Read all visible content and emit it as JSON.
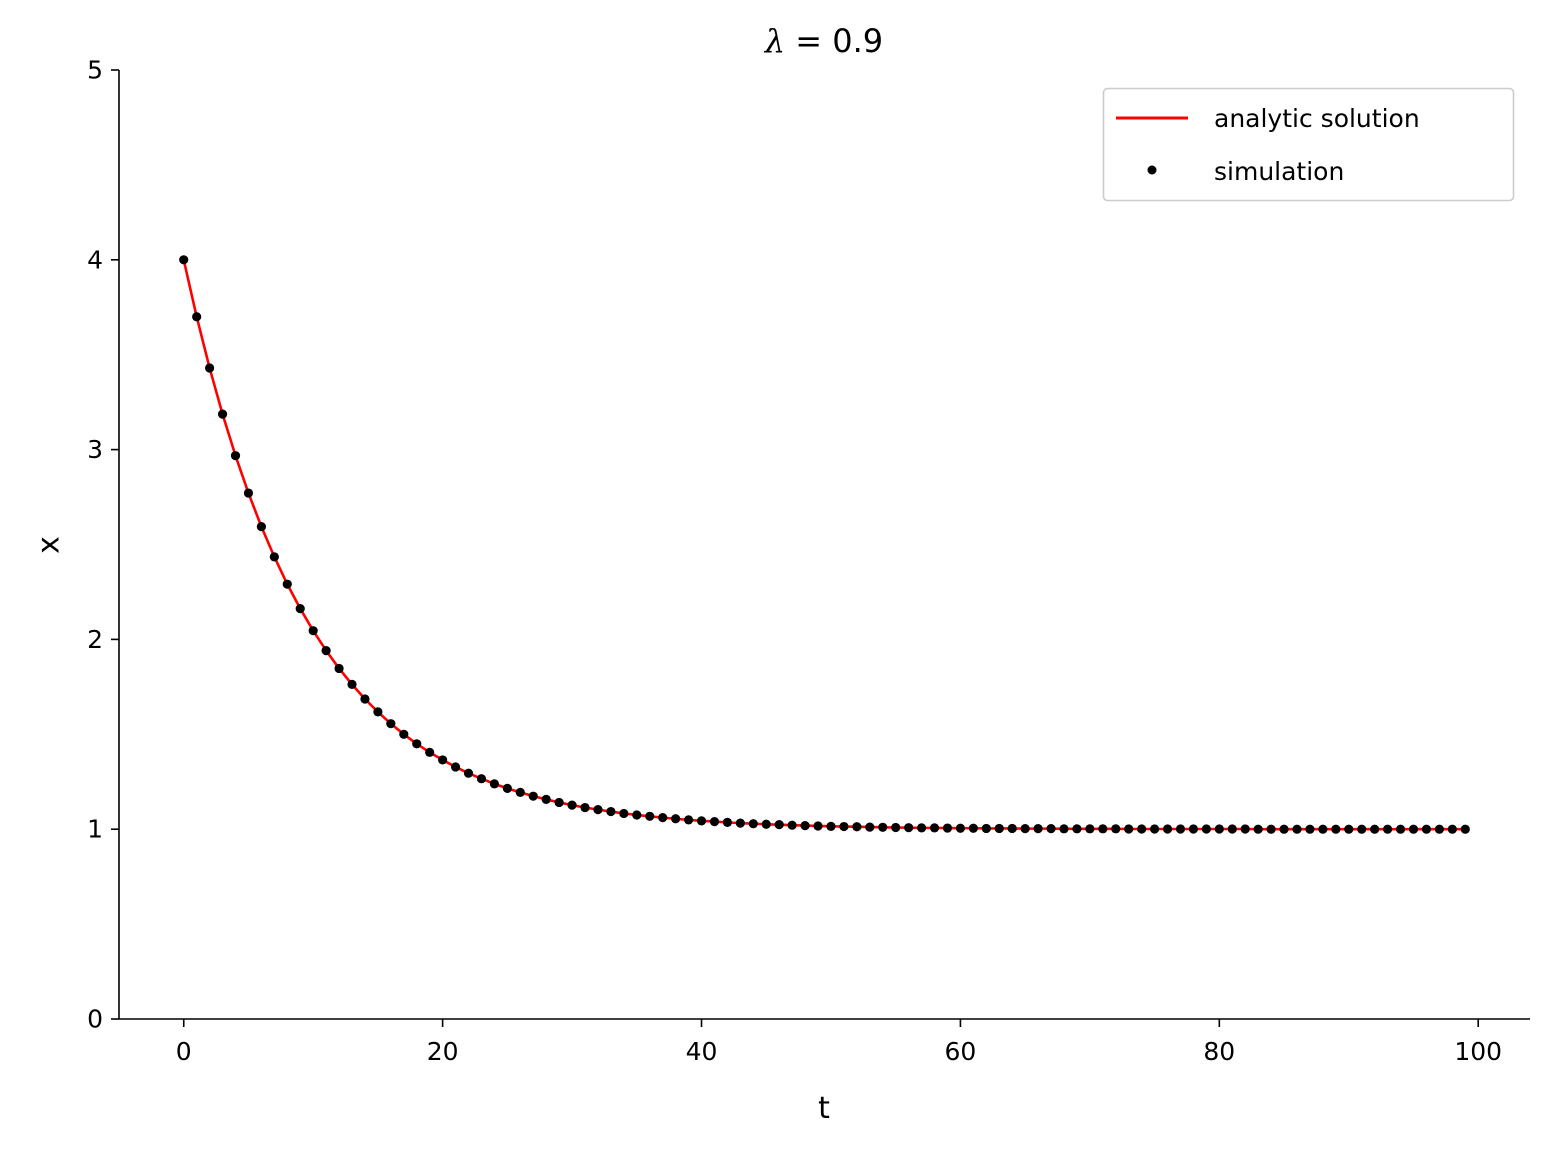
{
  "chart_data": {
    "type": "line",
    "title": "λ = 0.9",
    "title_parts": {
      "symbol": "λ",
      "rest": " = 0.9"
    },
    "xlabel": "t",
    "ylabel": "x",
    "xlim": [
      -5,
      104
    ],
    "ylim": [
      0,
      5
    ],
    "x_ticks": [
      0,
      20,
      40,
      60,
      80,
      100
    ],
    "y_ticks": [
      0,
      1,
      2,
      3,
      4,
      5
    ],
    "grid": false,
    "legend_position": "top-right",
    "series": [
      {
        "name": "analytic solution",
        "kind": "line",
        "color": "#ff0000",
        "x": [
          0,
          1,
          2,
          3,
          4,
          5,
          6,
          7,
          8,
          9,
          10,
          11,
          12,
          13,
          14,
          15,
          16,
          17,
          18,
          19,
          20,
          21,
          22,
          23,
          24,
          25,
          26,
          27,
          28,
          29,
          30,
          31,
          32,
          33,
          34,
          35,
          36,
          37,
          38,
          39,
          40,
          41,
          42,
          43,
          44,
          45,
          46,
          47,
          48,
          49,
          50,
          51,
          52,
          53,
          54,
          55,
          56,
          57,
          58,
          59,
          60,
          61,
          62,
          63,
          64,
          65,
          66,
          67,
          68,
          69,
          70,
          71,
          72,
          73,
          74,
          75,
          76,
          77,
          78,
          79,
          80,
          81,
          82,
          83,
          84,
          85,
          86,
          87,
          88,
          89,
          90,
          91,
          92,
          93,
          94,
          95,
          96,
          97,
          98,
          99
        ],
        "values": [
          4.0,
          3.7,
          3.43,
          3.187,
          2.968,
          2.771,
          2.594,
          2.435,
          2.291,
          2.162,
          2.046,
          1.941,
          1.847,
          1.763,
          1.686,
          1.618,
          1.556,
          1.5,
          1.45,
          1.405,
          1.365,
          1.328,
          1.295,
          1.266,
          1.239,
          1.215,
          1.194,
          1.174,
          1.157,
          1.141,
          1.127,
          1.114,
          1.103,
          1.093,
          1.083,
          1.075,
          1.068,
          1.061,
          1.055,
          1.049,
          1.044,
          1.04,
          1.036,
          1.032,
          1.029,
          1.026,
          1.024,
          1.021,
          1.019,
          1.017,
          1.015,
          1.014,
          1.013,
          1.011,
          1.01,
          1.009,
          1.008,
          1.007,
          1.007,
          1.006,
          1.005,
          1.005,
          1.004,
          1.004,
          1.004,
          1.003,
          1.003,
          1.003,
          1.002,
          1.002,
          1.002,
          1.002,
          1.002,
          1.001,
          1.001,
          1.001,
          1.001,
          1.001,
          1.001,
          1.001,
          1.001,
          1.001,
          1.001,
          1.0,
          1.0,
          1.0,
          1.0,
          1.0,
          1.0,
          1.0,
          1.0,
          1.0,
          1.0,
          1.0,
          1.0,
          1.0,
          1.0,
          1.0,
          1.0,
          1.0
        ]
      },
      {
        "name": "simulation",
        "kind": "scatter",
        "color": "#000000",
        "x": [
          0,
          1,
          2,
          3,
          4,
          5,
          6,
          7,
          8,
          9,
          10,
          11,
          12,
          13,
          14,
          15,
          16,
          17,
          18,
          19,
          20,
          21,
          22,
          23,
          24,
          25,
          26,
          27,
          28,
          29,
          30,
          31,
          32,
          33,
          34,
          35,
          36,
          37,
          38,
          39,
          40,
          41,
          42,
          43,
          44,
          45,
          46,
          47,
          48,
          49,
          50,
          51,
          52,
          53,
          54,
          55,
          56,
          57,
          58,
          59,
          60,
          61,
          62,
          63,
          64,
          65,
          66,
          67,
          68,
          69,
          70,
          71,
          72,
          73,
          74,
          75,
          76,
          77,
          78,
          79,
          80,
          81,
          82,
          83,
          84,
          85,
          86,
          87,
          88,
          89,
          90,
          91,
          92,
          93,
          94,
          95,
          96,
          97,
          98,
          99
        ],
        "values": [
          4.0,
          3.7,
          3.43,
          3.187,
          2.968,
          2.771,
          2.594,
          2.435,
          2.291,
          2.162,
          2.046,
          1.941,
          1.847,
          1.763,
          1.686,
          1.618,
          1.556,
          1.5,
          1.45,
          1.405,
          1.365,
          1.328,
          1.295,
          1.266,
          1.239,
          1.215,
          1.194,
          1.174,
          1.157,
          1.141,
          1.127,
          1.114,
          1.103,
          1.093,
          1.083,
          1.075,
          1.068,
          1.061,
          1.055,
          1.049,
          1.044,
          1.04,
          1.036,
          1.032,
          1.029,
          1.026,
          1.024,
          1.021,
          1.019,
          1.017,
          1.015,
          1.014,
          1.013,
          1.011,
          1.01,
          1.009,
          1.008,
          1.007,
          1.007,
          1.006,
          1.005,
          1.005,
          1.004,
          1.004,
          1.004,
          1.003,
          1.003,
          1.003,
          1.002,
          1.002,
          1.002,
          1.002,
          1.002,
          1.001,
          1.001,
          1.001,
          1.001,
          1.001,
          1.001,
          1.001,
          1.001,
          1.001,
          1.001,
          1.0,
          1.0,
          1.0,
          1.0,
          1.0,
          1.0,
          1.0,
          1.0,
          1.0,
          1.0,
          1.0,
          1.0,
          1.0,
          1.0,
          1.0,
          1.0,
          1.0
        ]
      }
    ]
  }
}
